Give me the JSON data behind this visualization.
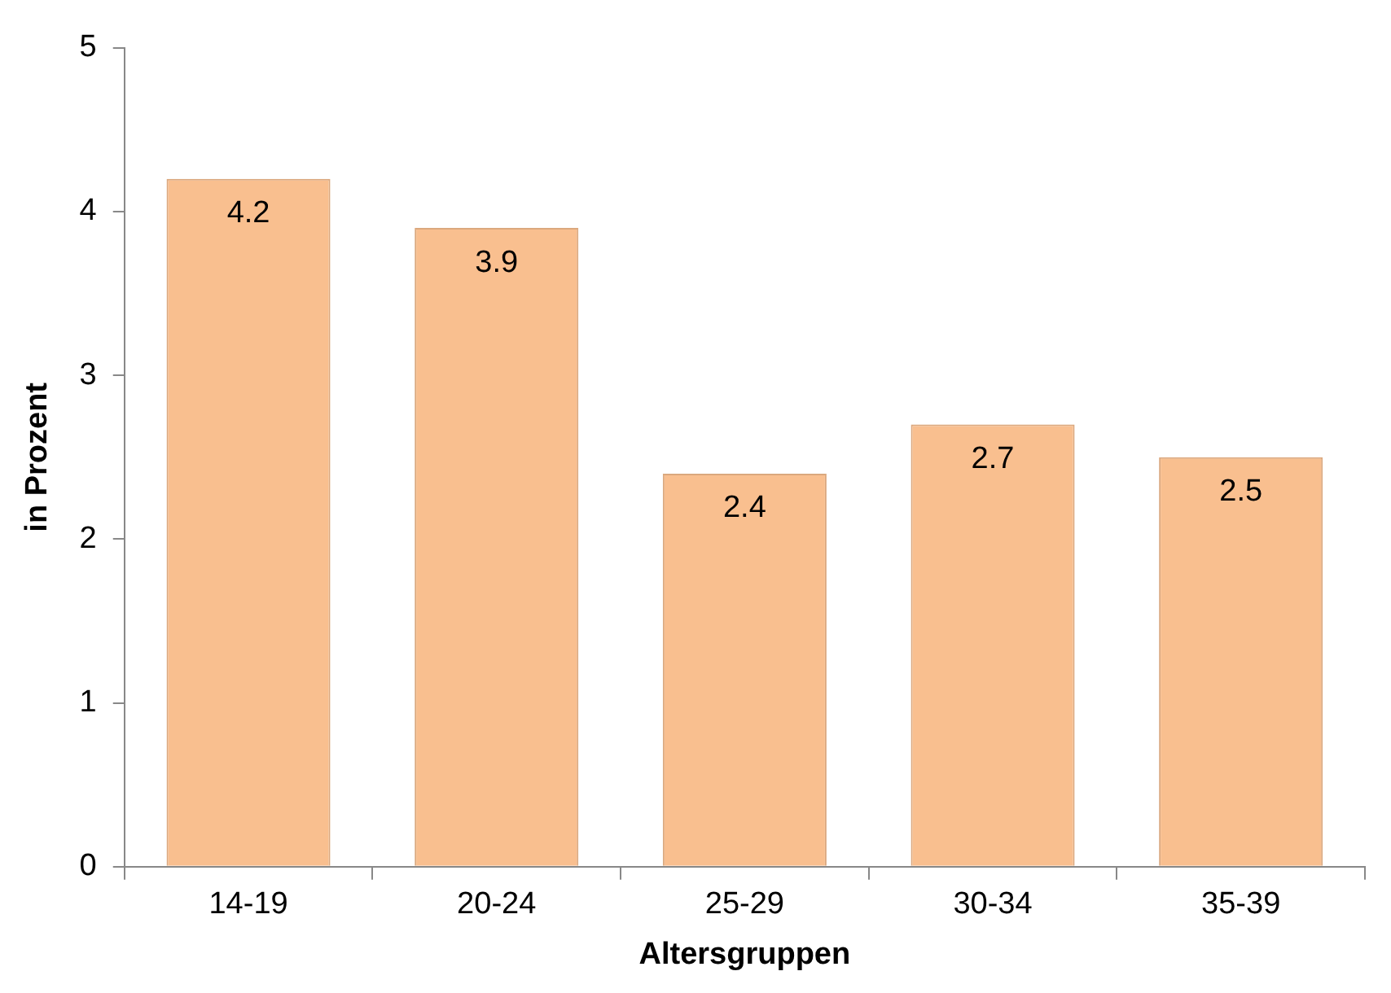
{
  "chart_data": {
    "type": "bar",
    "xlabel": "Altersgruppen",
    "ylabel": "in Prozent",
    "categories": [
      "14-19",
      "20-24",
      "25-29",
      "30-34",
      "35-39"
    ],
    "values": [
      4.2,
      3.9,
      2.4,
      2.7,
      2.5
    ],
    "color": "#f9bf8f",
    "ylim": [
      0,
      5
    ],
    "yticks": [
      0,
      1,
      2,
      3,
      4,
      5
    ],
    "grid": false,
    "legend": false,
    "data_labels": true
  }
}
